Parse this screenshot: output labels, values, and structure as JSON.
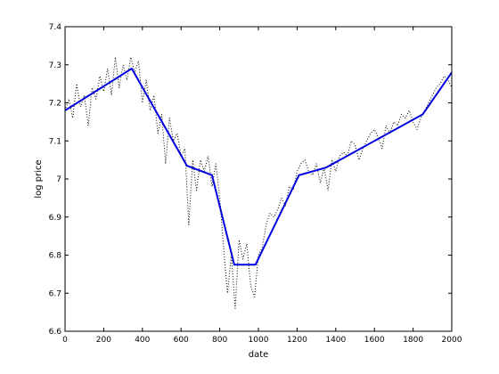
{
  "chart_data": {
    "type": "line",
    "title": "",
    "xlabel": "date",
    "ylabel": "log price",
    "xlim": [
      0,
      2000
    ],
    "ylim": [
      6.6,
      7.4
    ],
    "xticks": [
      0,
      200,
      400,
      600,
      800,
      1000,
      1200,
      1400,
      1600,
      1800,
      2000
    ],
    "xtick_labels": [
      "0",
      "200",
      "400",
      "600",
      "800",
      "1000",
      "1200",
      "1400",
      "1600",
      "1800",
      "2000"
    ],
    "yticks": [
      6.6,
      6.7,
      6.8,
      6.9,
      7.0,
      7.1,
      7.2,
      7.3,
      7.4
    ],
    "ytick_labels": [
      "6.6",
      "6.7",
      "6.8",
      "6.9",
      "7",
      "7.1",
      "7.2",
      "7.3",
      "7.4"
    ],
    "grid": false,
    "legend": "none",
    "series": [
      {
        "style": "dotted",
        "color": "#000000",
        "x": [
          0,
          20,
          40,
          60,
          80,
          100,
          120,
          140,
          160,
          180,
          200,
          220,
          240,
          260,
          280,
          300,
          320,
          340,
          360,
          380,
          400,
          420,
          440,
          460,
          480,
          500,
          520,
          540,
          560,
          580,
          600,
          620,
          640,
          660,
          680,
          700,
          720,
          740,
          760,
          780,
          800,
          820,
          840,
          860,
          880,
          900,
          920,
          940,
          960,
          980,
          1000,
          1020,
          1040,
          1060,
          1080,
          1100,
          1120,
          1140,
          1160,
          1180,
          1200,
          1220,
          1240,
          1260,
          1280,
          1300,
          1320,
          1340,
          1360,
          1380,
          1400,
          1420,
          1440,
          1460,
          1480,
          1500,
          1520,
          1540,
          1560,
          1580,
          1600,
          1620,
          1640,
          1660,
          1680,
          1700,
          1720,
          1740,
          1760,
          1780,
          1800,
          1820,
          1840,
          1860,
          1880,
          1900,
          1920,
          1940,
          1960,
          1980,
          2000
        ],
        "values": [
          7.18,
          7.21,
          7.16,
          7.25,
          7.19,
          7.22,
          7.14,
          7.24,
          7.21,
          7.27,
          7.23,
          7.29,
          7.22,
          7.32,
          7.24,
          7.3,
          7.26,
          7.32,
          7.28,
          7.31,
          7.2,
          7.26,
          7.18,
          7.22,
          7.12,
          7.17,
          7.04,
          7.16,
          7.1,
          7.12,
          7.06,
          7.08,
          6.88,
          7.05,
          6.97,
          7.05,
          7.02,
          7.06,
          6.98,
          7.04,
          6.95,
          6.82,
          6.7,
          6.8,
          6.66,
          6.84,
          6.79,
          6.83,
          6.72,
          6.69,
          6.8,
          6.82,
          6.88,
          6.91,
          6.9,
          6.92,
          6.95,
          6.93,
          6.98,
          6.97,
          7.02,
          7.04,
          7.05,
          7.02,
          7.01,
          7.04,
          6.99,
          7.03,
          6.97,
          7.05,
          7.02,
          7.06,
          7.07,
          7.06,
          7.1,
          7.09,
          7.05,
          7.08,
          7.1,
          7.12,
          7.13,
          7.11,
          7.08,
          7.14,
          7.12,
          7.15,
          7.14,
          7.17,
          7.16,
          7.18,
          7.15,
          7.13,
          7.16,
          7.18,
          7.2,
          7.22,
          7.24,
          7.25,
          7.27,
          7.26,
          7.24
        ]
      },
      {
        "style": "solid",
        "color": "#0000e0",
        "x": [
          0,
          345,
          630,
          760,
          875,
          985,
          1210,
          1350,
          1850,
          2000
        ],
        "values": [
          7.18,
          7.29,
          7.035,
          7.01,
          6.775,
          6.775,
          7.01,
          7.03,
          7.17,
          7.28
        ]
      }
    ]
  }
}
